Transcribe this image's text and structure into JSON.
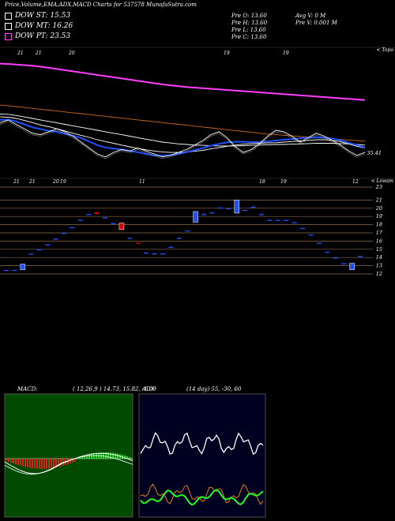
{
  "title": "Price,Volume,EMA,ADX,MACD Charts for 537578 MunafaSutra.com",
  "legend": [
    {
      "label": "DOW ST: 15.53",
      "color": "#ffffff"
    },
    {
      "label": "DOW MT: 16.26",
      "color": "#ffffff"
    },
    {
      "label": "DOW PT: 23.53",
      "color": "#ff3fff"
    }
  ],
  "ohlc": {
    "open": "Pre   O: 13.60",
    "high": "Pre   H: 13.60",
    "low": "Pre   L: 13.60",
    "close": "Pre   C: 13.60",
    "avgvol": "Avg V: 0  M",
    "prevol": "Pre   V: 0.001 M"
  },
  "chart_data": [
    {
      "type": "line",
      "name": "ema-panel",
      "top_label": "< Topo",
      "price_label": "35.41",
      "date_labels": [
        "21",
        "21",
        "20",
        "19",
        "19"
      ],
      "series": [
        {
          "color": "#ff3fff",
          "values": [
            64.5,
            64.4,
            64.2,
            64.0,
            63.8,
            63.5,
            63.1,
            62.7,
            62.3,
            61.9,
            61.5,
            61.1,
            60.7,
            60.3,
            59.9,
            59.5,
            59.1,
            58.7,
            58.3,
            57.9,
            57.5,
            57.2,
            56.9,
            56.6,
            56.4,
            56.2,
            56.0,
            55.8,
            55.6,
            55.4,
            55.2,
            55.0,
            54.8,
            54.6,
            54.4,
            54.2,
            54.0,
            53.8,
            53.6,
            53.4,
            53.2,
            53.0,
            52.8,
            52.6,
            52.4,
            52.2
          ]
        },
        {
          "color": "#c86a1e",
          "values": [
            50.5,
            50.3,
            50.0,
            49.7,
            49.4,
            49.1,
            48.8,
            48.5,
            48.2,
            47.9,
            47.6,
            47.3,
            47.0,
            46.7,
            46.4,
            46.1,
            45.8,
            45.5,
            45.2,
            44.9,
            44.6,
            44.3,
            44.0,
            43.7,
            43.4,
            43.1,
            42.8,
            42.5,
            42.2,
            41.9,
            41.6,
            41.3,
            41.0,
            40.7,
            40.5,
            40.3,
            40.1,
            39.9,
            39.7,
            39.5,
            39.3,
            39.1,
            38.9,
            38.7,
            38.5,
            38.3
          ]
        },
        {
          "color": "#ffffff",
          "values": [
            47.5,
            47.4,
            47.0,
            46.5,
            46.0,
            45.5,
            45.0,
            44.5,
            44.0,
            43.5,
            43.0,
            42.5,
            42.0,
            41.5,
            41.0,
            40.5,
            40.0,
            39.5,
            39.0,
            38.5,
            38.0,
            37.7,
            37.4,
            37.2,
            37.0,
            36.9,
            36.8,
            36.7,
            36.7,
            36.7,
            36.8,
            36.9,
            37.0,
            37.1,
            37.2,
            37.2,
            37.3,
            37.4,
            37.5,
            37.6,
            37.6,
            37.6,
            37.5,
            37.4,
            37.2,
            37.0
          ]
        },
        {
          "color": "#ffffff",
          "values": [
            46.5,
            46.4,
            46.0,
            45.3,
            44.6,
            43.8,
            43.2,
            42.5,
            41.8,
            41.0,
            40.3,
            39.6,
            38.8,
            38.2,
            37.6,
            37.0,
            36.4,
            35.9,
            35.4,
            35.0,
            34.7,
            34.5,
            34.5,
            34.6,
            34.9,
            35.2,
            35.7,
            36.1,
            36.6,
            37.0,
            37.3,
            37.5,
            37.6,
            37.7,
            37.8,
            38.0,
            38.2,
            38.4,
            38.6,
            38.8,
            38.8,
            38.6,
            38.1,
            37.4,
            36.6,
            36.0
          ]
        },
        {
          "color": "#1e50ff",
          "values": [
            45.5,
            45.6,
            45.0,
            44.0,
            43.0,
            42.4,
            41.8,
            41.5,
            40.8,
            40.2,
            39.4,
            38.2,
            37.0,
            36.2,
            35.8,
            35.5,
            35.0,
            34.6,
            34.0,
            33.5,
            33.4,
            33.6,
            34.0,
            34.6,
            35.3,
            36.0,
            36.8,
            37.4,
            37.9,
            38.1,
            38.1,
            38.0,
            38.0,
            38.2,
            38.5,
            38.8,
            39.0,
            39.3,
            39.5,
            39.6,
            39.5,
            39.2,
            38.6,
            37.8,
            37.0,
            36.2
          ]
        },
        {
          "color": "#ffffff",
          "values": [
            44.5,
            45.5,
            44.0,
            42.5,
            41.0,
            40.5,
            41.5,
            42.5,
            41.5,
            40.0,
            38.0,
            36.0,
            34.0,
            33.0,
            34.5,
            35.5,
            35.0,
            36.0,
            35.0,
            34.0,
            33.0,
            33.5,
            34.5,
            35.5,
            37.0,
            38.5,
            40.5,
            41.5,
            39.5,
            36.5,
            34.5,
            35.5,
            37.5,
            40.0,
            42.0,
            41.5,
            40.0,
            38.0,
            39.5,
            41.0,
            40.0,
            38.5,
            37.0,
            35.0,
            33.5,
            34.5
          ]
        }
      ]
    },
    {
      "type": "candlestick",
      "name": "price-panel",
      "top_label": "< Lowsm",
      "y_ticks": [
        12,
        13,
        14,
        15,
        16,
        17,
        18,
        19,
        20,
        21,
        23
      ],
      "date_labels": [
        "21",
        "21",
        "20",
        "19",
        "11",
        "18",
        "19",
        "12"
      ],
      "candles": [
        {
          "o": 12.5,
          "c": 12.5,
          "col": "#1e50ff"
        },
        {
          "o": 12.5,
          "c": 12.5,
          "col": "#1e50ff"
        },
        {
          "o": 12.5,
          "c": 13.2,
          "col": "#1e50ff"
        },
        {
          "o": 14.5,
          "c": 14.5,
          "col": "#1e50ff"
        },
        {
          "o": 15.0,
          "c": 15.0,
          "col": "#1e50ff"
        },
        {
          "o": 15.6,
          "c": 15.6,
          "col": "#1e50ff"
        },
        {
          "o": 16.3,
          "c": 16.3,
          "col": "#1e50ff"
        },
        {
          "o": 17.0,
          "c": 17.0,
          "col": "#1e50ff"
        },
        {
          "o": 17.7,
          "c": 17.7,
          "col": "#1e50ff"
        },
        {
          "o": 18.6,
          "c": 18.6,
          "col": "#1e50ff"
        },
        {
          "o": 19.3,
          "c": 19.3,
          "col": "#1e50ff"
        },
        {
          "o": 19.5,
          "c": 19.3,
          "col": "#e00000"
        },
        {
          "o": 18.9,
          "c": 18.9,
          "col": "#1e50ff"
        },
        {
          "o": 18.2,
          "c": 18.2,
          "col": "#1e50ff"
        },
        {
          "o": 18.2,
          "c": 17.4,
          "col": "#e00000"
        },
        {
          "o": 16.4,
          "c": 16.4,
          "col": "#1e50ff"
        },
        {
          "o": 15.8,
          "c": 15.8,
          "col": "#e00000"
        },
        {
          "o": 14.6,
          "c": 14.6,
          "col": "#1e50ff"
        },
        {
          "o": 14.5,
          "c": 14.5,
          "col": "#1e50ff"
        },
        {
          "o": 14.5,
          "c": 14.5,
          "col": "#1e50ff"
        },
        {
          "o": 15.3,
          "c": 15.3,
          "col": "#1e50ff"
        },
        {
          "o": 16.4,
          "c": 16.4,
          "col": "#1e50ff"
        },
        {
          "o": 17.3,
          "c": 17.3,
          "col": "#1e50ff"
        },
        {
          "o": 18.3,
          "c": 19.6,
          "col": "#1e50ff"
        },
        {
          "o": 19.3,
          "c": 19.3,
          "col": "#1e50ff"
        },
        {
          "o": 19.5,
          "c": 19.5,
          "col": "#1e50ff"
        },
        {
          "o": 20.1,
          "c": 20.1,
          "col": "#1e50ff"
        },
        {
          "o": 20.0,
          "c": 20.0,
          "col": "#1e50ff"
        },
        {
          "o": 19.4,
          "c": 21.0,
          "col": "#1e50ff"
        },
        {
          "o": 19.8,
          "c": 19.8,
          "col": "#1e50ff"
        },
        {
          "o": 20.2,
          "c": 20.2,
          "col": "#1e50ff"
        },
        {
          "o": 19.3,
          "c": 19.3,
          "col": "#1e50ff"
        },
        {
          "o": 18.6,
          "c": 18.6,
          "col": "#1e50ff"
        },
        {
          "o": 18.6,
          "c": 18.6,
          "col": "#1e50ff"
        },
        {
          "o": 18.6,
          "c": 18.6,
          "col": "#1e50ff"
        },
        {
          "o": 18.3,
          "c": 18.3,
          "col": "#1e50ff"
        },
        {
          "o": 17.6,
          "c": 17.6,
          "col": "#1e50ff"
        },
        {
          "o": 16.8,
          "c": 16.8,
          "col": "#1e50ff"
        },
        {
          "o": 15.8,
          "c": 15.8,
          "col": "#1e50ff"
        },
        {
          "o": 14.7,
          "c": 14.7,
          "col": "#1e50ff"
        },
        {
          "o": 14.0,
          "c": 14.0,
          "col": "#1e50ff"
        },
        {
          "o": 13.3,
          "c": 13.3,
          "col": "#1e50ff"
        },
        {
          "o": 12.5,
          "c": 13.3,
          "col": "#1e50ff"
        },
        {
          "o": 14.2,
          "c": 14.2,
          "col": "#1e50ff"
        }
      ]
    },
    {
      "type": "line",
      "name": "macd-panel",
      "title": "MACD:",
      "params": "( 12,26,9 ) 14.73,  15.82,  -1.09"
    },
    {
      "type": "line",
      "name": "adx-panel",
      "title": "ADX",
      "params": "(14  day) 55,  -30,  60"
    }
  ]
}
